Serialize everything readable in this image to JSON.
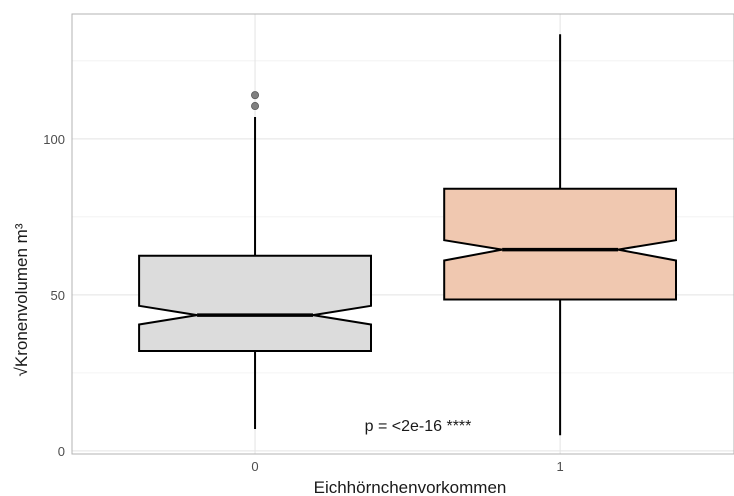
{
  "chart_data": {
    "type": "boxplot",
    "title": "",
    "xlabel": "Eichhörnchenvorkommen",
    "ylabel": "√Kronenvolumen m³",
    "ylim": [
      -1,
      140
    ],
    "yticks": [
      0,
      50,
      100
    ],
    "grid": true,
    "categories": [
      "0",
      "1"
    ],
    "boxes": [
      {
        "category": "0",
        "whisker_low": 7,
        "q1": 32,
        "median": 43.5,
        "q3": 62.5,
        "whisker_high": 107,
        "notch_low": 40.5,
        "notch_high": 46.5,
        "outliers": [
          110.5,
          114
        ],
        "fill": "#dcdcdc"
      },
      {
        "category": "1",
        "whisker_low": 5,
        "q1": 48.5,
        "median": 64.5,
        "q3": 84,
        "whisker_high": 133.5,
        "notch_low": 61,
        "notch_high": 67.5,
        "outliers": [],
        "fill": "#f0c8b0"
      }
    ],
    "annotation": "p = <2e-16 ****"
  }
}
